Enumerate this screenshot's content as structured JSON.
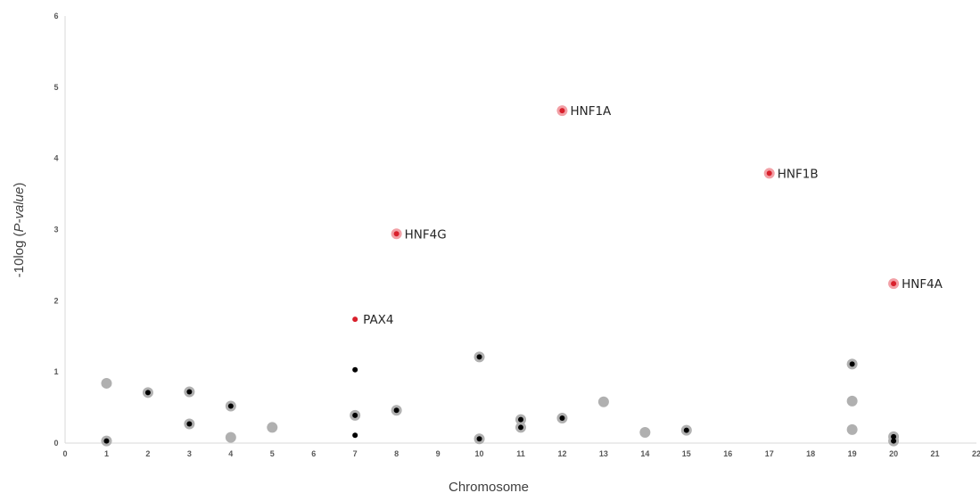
{
  "chart_data": {
    "type": "scatter",
    "xlabel": "Chromosome",
    "ylabel_parts": [
      "-10log (",
      "P-value",
      ")"
    ],
    "xlim": [
      0,
      22
    ],
    "ylim": [
      0,
      6
    ],
    "xticks": [
      0,
      1,
      2,
      3,
      4,
      5,
      6,
      7,
      8,
      9,
      10,
      11,
      12,
      13,
      14,
      15,
      16,
      17,
      18,
      19,
      20,
      21,
      22
    ],
    "yticks": [
      0,
      1,
      2,
      3,
      4,
      5,
      6
    ],
    "grid": false,
    "colors": {
      "grey": "#b0b0b0",
      "black": "#000000",
      "highlight_halo": "#f2a0a6",
      "highlight_core": "#d9202c"
    },
    "series": [
      {
        "style": "grey-circle",
        "points": [
          {
            "x": 1,
            "y": 0.84
          },
          {
            "x": 1,
            "y": 0.03
          },
          {
            "x": 2,
            "y": 0.71
          },
          {
            "x": 3,
            "y": 0.72
          },
          {
            "x": 3,
            "y": 0.27
          },
          {
            "x": 4,
            "y": 0.52
          },
          {
            "x": 4,
            "y": 0.08
          },
          {
            "x": 5,
            "y": 0.22
          },
          {
            "x": 7,
            "y": 0.39
          },
          {
            "x": 8,
            "y": 0.46
          },
          {
            "x": 10,
            "y": 1.21
          },
          {
            "x": 10,
            "y": 0.06
          },
          {
            "x": 11,
            "y": 0.33
          },
          {
            "x": 11,
            "y": 0.22
          },
          {
            "x": 12,
            "y": 0.35
          },
          {
            "x": 13,
            "y": 0.58
          },
          {
            "x": 14,
            "y": 0.15
          },
          {
            "x": 15,
            "y": 0.18
          },
          {
            "x": 19,
            "y": 1.11
          },
          {
            "x": 19,
            "y": 0.59
          },
          {
            "x": 19,
            "y": 0.19
          },
          {
            "x": 20,
            "y": 0.09
          },
          {
            "x": 20,
            "y": 0.03
          }
        ]
      },
      {
        "style": "black-dot",
        "points": [
          {
            "x": 1,
            "y": 0.03
          },
          {
            "x": 2,
            "y": 0.71
          },
          {
            "x": 3,
            "y": 0.72
          },
          {
            "x": 3,
            "y": 0.27
          },
          {
            "x": 4,
            "y": 0.52
          },
          {
            "x": 7,
            "y": 1.03
          },
          {
            "x": 7,
            "y": 0.39
          },
          {
            "x": 7,
            "y": 0.11
          },
          {
            "x": 8,
            "y": 0.46
          },
          {
            "x": 10,
            "y": 1.21
          },
          {
            "x": 10,
            "y": 0.06
          },
          {
            "x": 11,
            "y": 0.33
          },
          {
            "x": 11,
            "y": 0.22
          },
          {
            "x": 12,
            "y": 0.35
          },
          {
            "x": 15,
            "y": 0.18
          },
          {
            "x": 19,
            "y": 1.11
          },
          {
            "x": 20,
            "y": 0.09
          },
          {
            "x": 20,
            "y": 0.03
          }
        ]
      },
      {
        "style": "highlighted",
        "points": [
          {
            "x": 12,
            "y": 4.67,
            "label": "HNF1A",
            "halo": true
          },
          {
            "x": 17,
            "y": 3.79,
            "label": "HNF1B",
            "halo": true
          },
          {
            "x": 8,
            "y": 2.94,
            "label": "HNF4G",
            "halo": true
          },
          {
            "x": 20,
            "y": 2.24,
            "label": "HNF4A",
            "halo": true
          },
          {
            "x": 7,
            "y": 1.74,
            "label": "PAX4",
            "halo": false
          }
        ]
      }
    ]
  }
}
